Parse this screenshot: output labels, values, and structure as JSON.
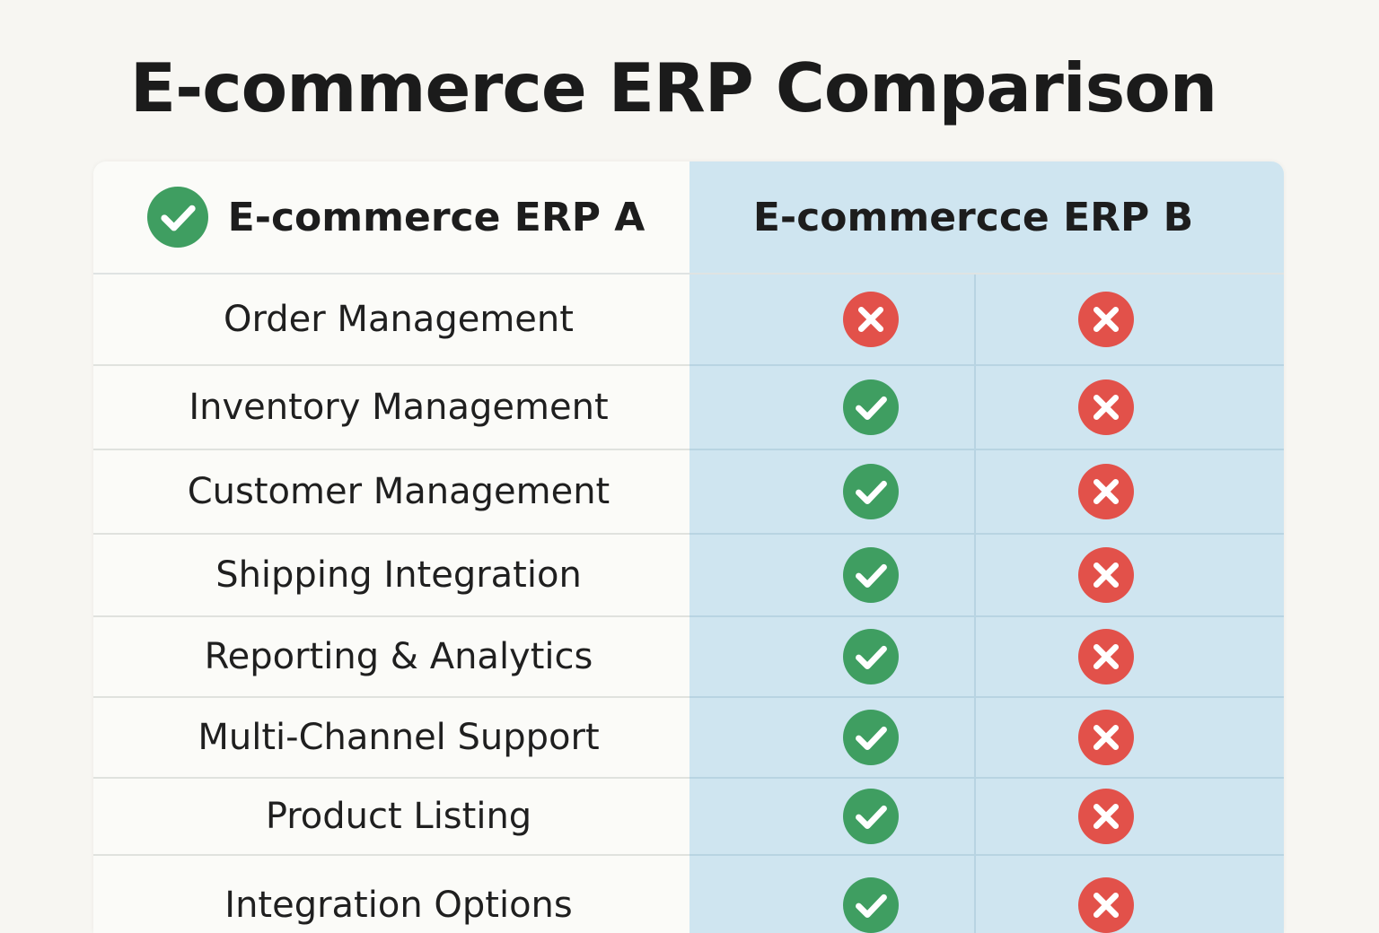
{
  "title": "E-commerce ERP Comparison",
  "columns": {
    "a": "E-commerce ERP A",
    "b": "E-commercce ERP B"
  },
  "colors": {
    "check": "#3f9e61",
    "cross": "#e2514a",
    "highlight": "#cfe5f0"
  },
  "rows": [
    {
      "feature": "Order Management",
      "a": "cross",
      "b": "cross"
    },
    {
      "feature": "Inventory Management",
      "a": "check",
      "b": "cross"
    },
    {
      "feature": "Customer Management",
      "a": "check",
      "b": "cross"
    },
    {
      "feature": "Shipping Integration",
      "a": "check",
      "b": "cross"
    },
    {
      "feature": "Reporting & Analytics",
      "a": "check",
      "b": "cross"
    },
    {
      "feature": "Multi-Channel Support",
      "a": "check",
      "b": "cross"
    },
    {
      "feature": "Product Listing",
      "a": "check",
      "b": "cross"
    },
    {
      "feature": "Integration Options",
      "a": "check",
      "b": "cross"
    }
  ]
}
